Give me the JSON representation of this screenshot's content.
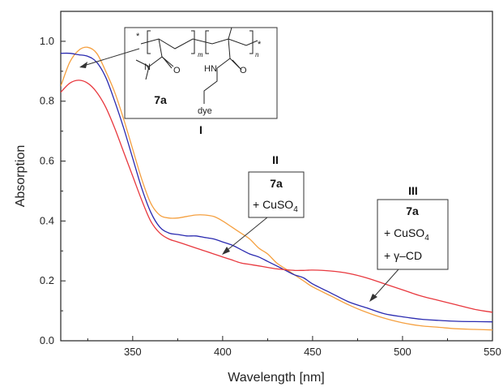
{
  "chart_data": {
    "type": "line",
    "xlabel": "Wavelength [nm]",
    "ylabel": "Absorption",
    "xlim": [
      310,
      550
    ],
    "ylim": [
      0.0,
      1.1
    ],
    "x_ticks": [
      "350",
      "400",
      "450",
      "500",
      "550"
    ],
    "y_ticks": [
      "0.0",
      "0.2",
      "0.4",
      "0.6",
      "0.8",
      "1.0"
    ],
    "grid": false,
    "colors": {
      "I": "#f5a040",
      "II": "#2a2ab0",
      "III": "#e8383e"
    },
    "series": [
      {
        "label": "I",
        "x": [
          310,
          315,
          320,
          325,
          330,
          335,
          340,
          345,
          350,
          355,
          360,
          365,
          370,
          375,
          380,
          385,
          390,
          395,
          400,
          405,
          410,
          415,
          420,
          425,
          430,
          435,
          440,
          445,
          450,
          460,
          470,
          480,
          490,
          500,
          510,
          520,
          530,
          540,
          550
        ],
        "y": [
          0.85,
          0.93,
          0.97,
          0.98,
          0.96,
          0.9,
          0.83,
          0.74,
          0.64,
          0.54,
          0.46,
          0.42,
          0.41,
          0.41,
          0.415,
          0.42,
          0.42,
          0.415,
          0.4,
          0.38,
          0.36,
          0.34,
          0.31,
          0.29,
          0.26,
          0.24,
          0.22,
          0.2,
          0.18,
          0.15,
          0.12,
          0.095,
          0.075,
          0.06,
          0.05,
          0.045,
          0.04,
          0.038,
          0.036
        ]
      },
      {
        "label": "II",
        "x": [
          310,
          315,
          320,
          325,
          330,
          335,
          340,
          345,
          350,
          355,
          360,
          365,
          370,
          375,
          380,
          385,
          390,
          395,
          400,
          405,
          410,
          415,
          420,
          425,
          430,
          435,
          440,
          445,
          450,
          460,
          470,
          480,
          490,
          500,
          510,
          520,
          530,
          540,
          550
        ],
        "y": [
          0.96,
          0.96,
          0.955,
          0.95,
          0.93,
          0.88,
          0.8,
          0.71,
          0.61,
          0.51,
          0.43,
          0.38,
          0.36,
          0.355,
          0.35,
          0.35,
          0.345,
          0.34,
          0.33,
          0.32,
          0.305,
          0.29,
          0.28,
          0.265,
          0.25,
          0.235,
          0.22,
          0.21,
          0.19,
          0.16,
          0.13,
          0.11,
          0.09,
          0.08,
          0.072,
          0.068,
          0.065,
          0.064,
          0.063
        ]
      },
      {
        "label": "III",
        "x": [
          310,
          315,
          320,
          325,
          330,
          335,
          340,
          345,
          350,
          355,
          360,
          365,
          370,
          375,
          380,
          385,
          390,
          395,
          400,
          405,
          410,
          415,
          420,
          425,
          430,
          435,
          440,
          445,
          450,
          460,
          470,
          480,
          490,
          500,
          510,
          520,
          530,
          540,
          550
        ],
        "y": [
          0.83,
          0.86,
          0.87,
          0.86,
          0.83,
          0.78,
          0.71,
          0.63,
          0.55,
          0.47,
          0.4,
          0.36,
          0.34,
          0.33,
          0.32,
          0.31,
          0.3,
          0.29,
          0.28,
          0.27,
          0.26,
          0.255,
          0.25,
          0.245,
          0.24,
          0.237,
          0.235,
          0.235,
          0.236,
          0.233,
          0.225,
          0.21,
          0.19,
          0.17,
          0.15,
          0.135,
          0.12,
          0.105,
          0.095
        ]
      }
    ]
  },
  "annotations": {
    "I": {
      "label": "I",
      "compound": "7a"
    },
    "II": {
      "label": "II",
      "compound": "7a",
      "line1": "+ CuSO",
      "line1_sub": "4"
    },
    "III": {
      "label": "III",
      "compound": "7a",
      "line1": "+ CuSO",
      "line1_sub": "4",
      "line2": "+ γ–CD"
    }
  },
  "structure": {
    "star": "*",
    "sub_m": "m",
    "sub_n": "n",
    "n_label": "N",
    "o_label": "O",
    "hn_label": "HN",
    "o2_label": "O",
    "dye_label": "dye"
  }
}
